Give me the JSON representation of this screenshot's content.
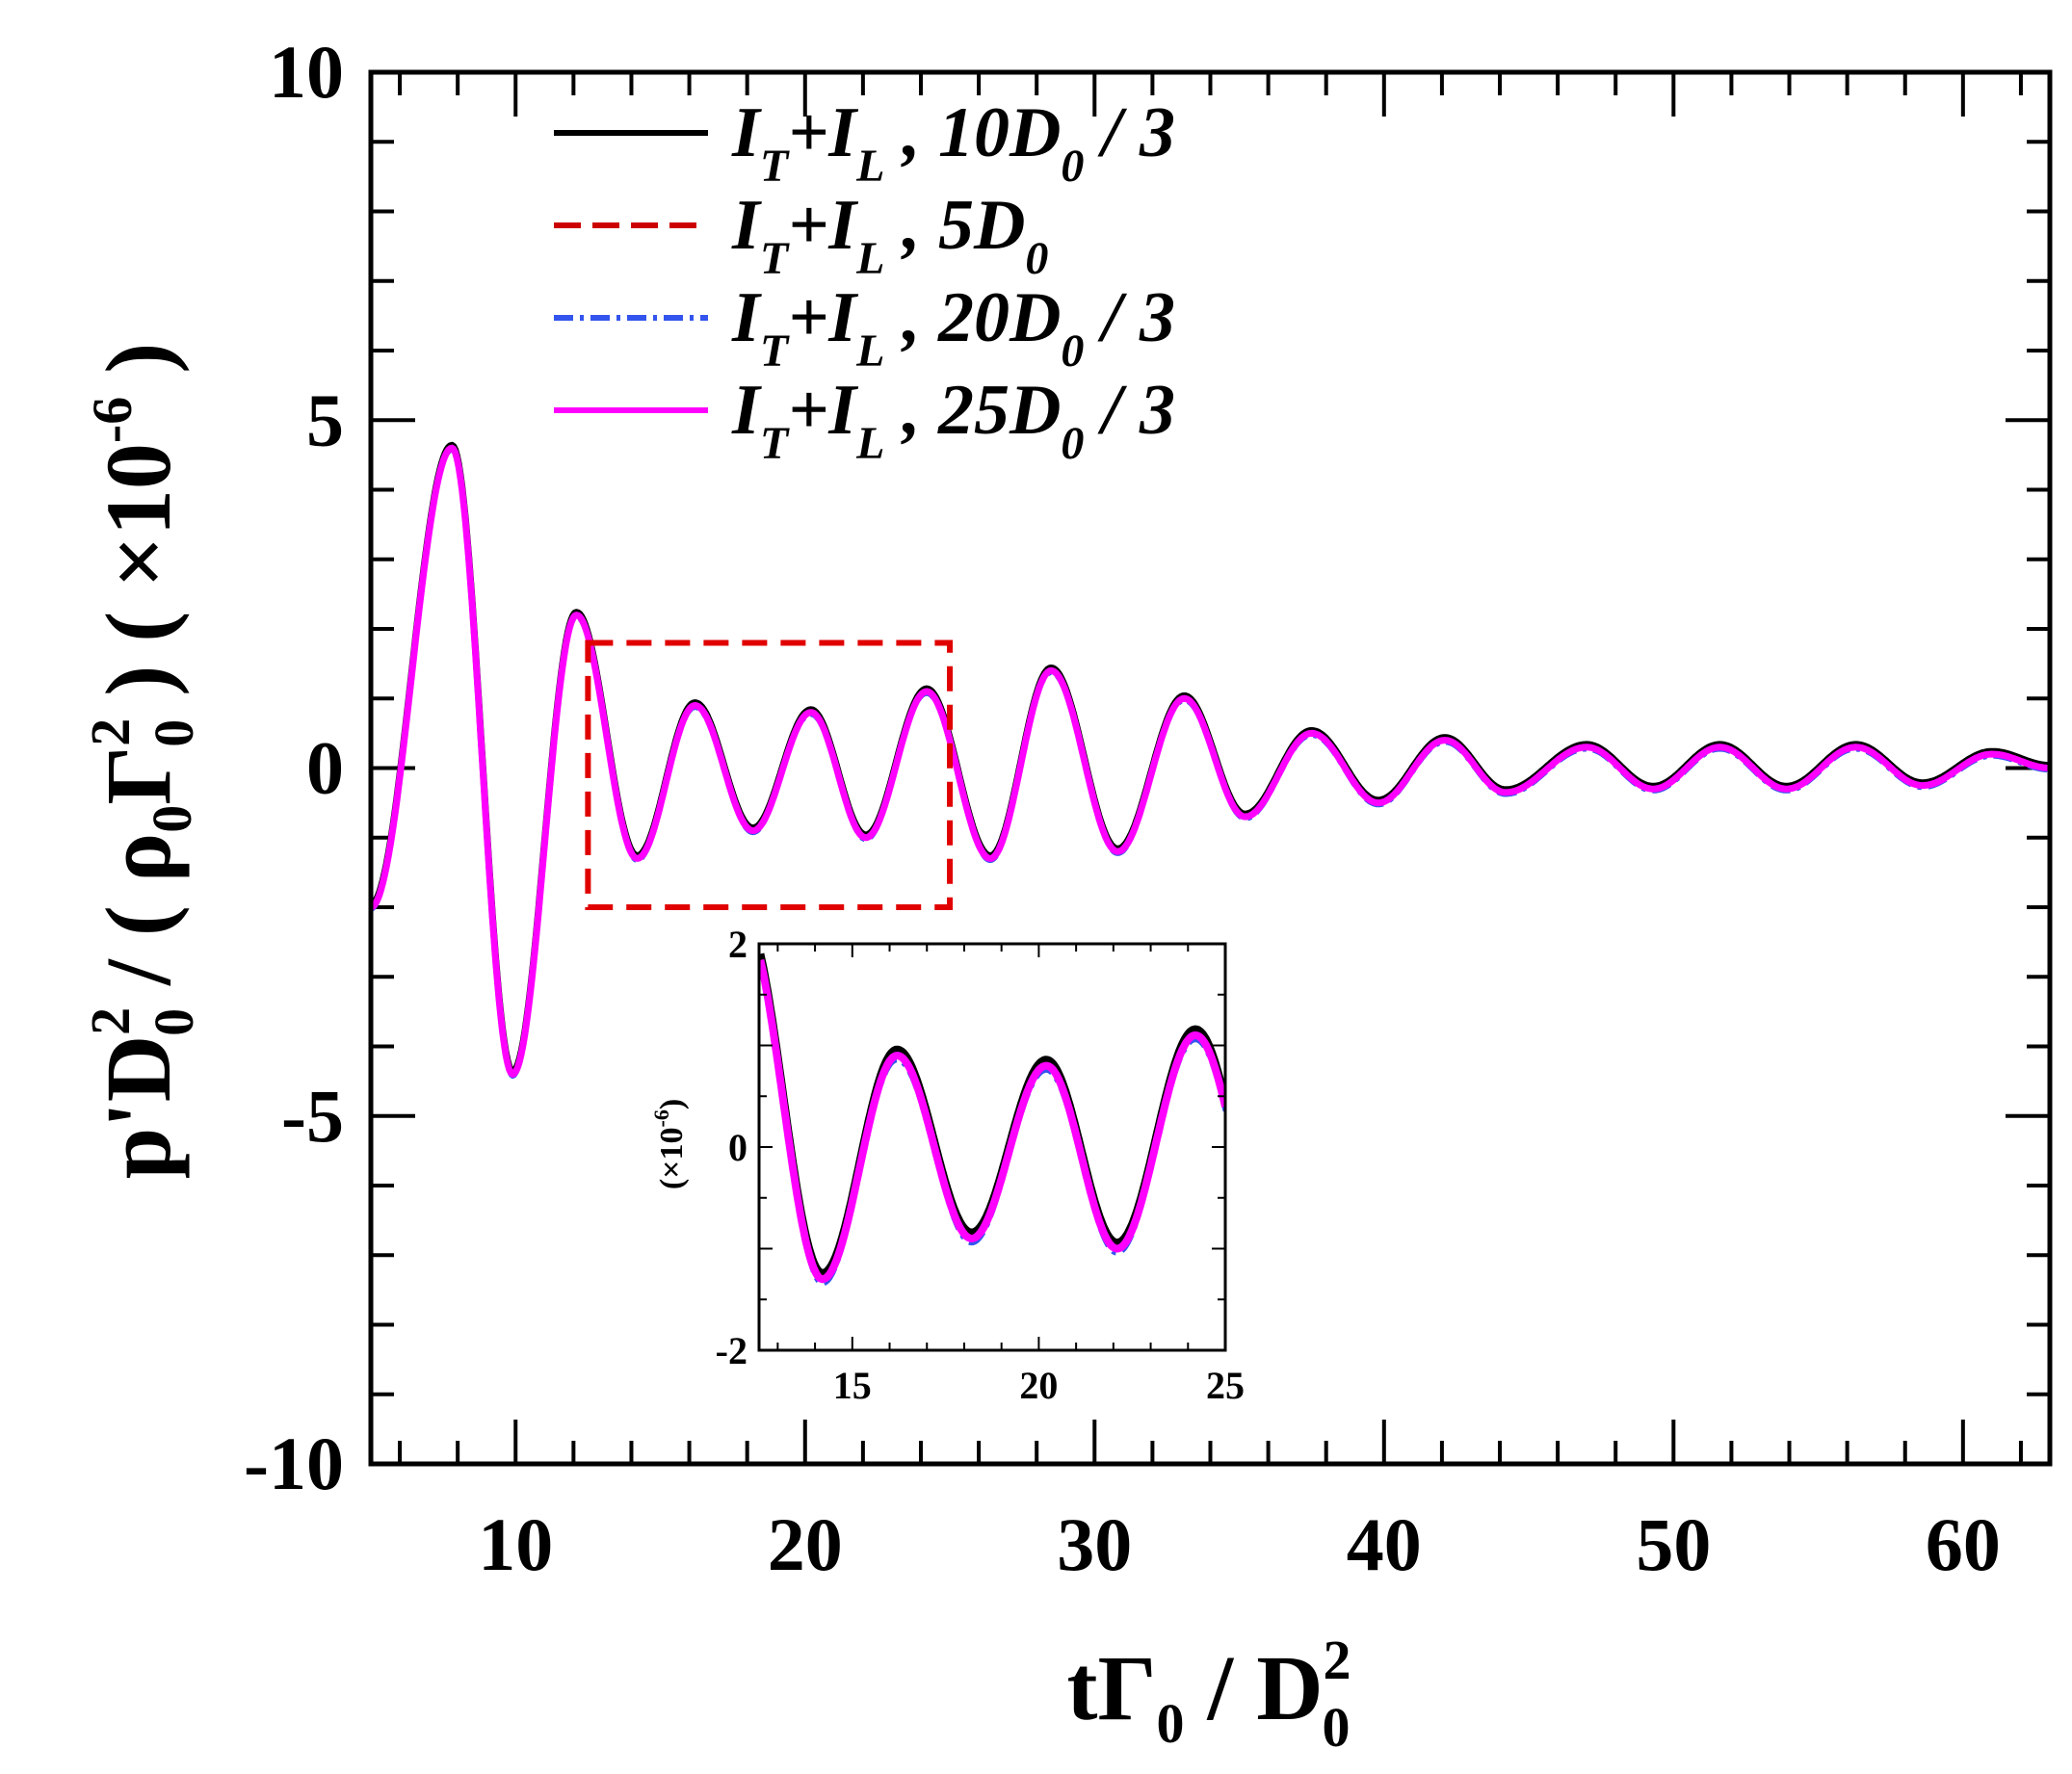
{
  "chart_data": {
    "type": "line",
    "x_axis": {
      "label_base": "tΓ",
      "label_sub": "0",
      "label_div": " / D",
      "label_sup": "2",
      "label_sub2": "0",
      "range": [
        5,
        63
      ],
      "major_ticks": [
        10,
        20,
        30,
        40,
        50,
        60
      ],
      "minor_step": 2
    },
    "y_axis": {
      "label_parts": [
        "p'D",
        "2",
        "0",
        " / ( ρ",
        "0",
        "Γ",
        "2",
        "0",
        " ) ( ×10",
        "-6",
        " )"
      ],
      "range": [
        -10,
        10
      ],
      "tick_labels": [
        "-10",
        "-5",
        "0",
        "5",
        "10"
      ],
      "tick_values": [
        -10,
        -5,
        0,
        5,
        10
      ],
      "minor_step": 1,
      "scale_note": "×10^-6"
    },
    "series": [
      {
        "name": "I_T+I_L , 10D_0 / 3",
        "base": "I",
        "s1": "T",
        "plus": "+I",
        "s2": "L",
        "tail": " , 10D",
        "s3": "0",
        "end": " / 3",
        "color": "#000000",
        "dash": ""
      },
      {
        "name": "I_T+I_L , 5D_0",
        "base": "I",
        "s1": "T",
        "plus": "+I",
        "s2": "L",
        "tail": " , 5D",
        "s3": "0",
        "end": "",
        "color": "#cc0000",
        "dash": "28 12"
      },
      {
        "name": "I_T+I_L , 20D_0 / 3",
        "base": "I",
        "s1": "T",
        "plus": "+I",
        "s2": "L",
        "tail": " , 20D",
        "s3": "0",
        "end": " / 3",
        "color": "#3355ee",
        "dash": "20 7 4 7"
      },
      {
        "name": "I_T+I_L , 25D_0 / 3",
        "base": "I",
        "s1": "T",
        "plus": "+I",
        "s2": "L",
        "tail": " , 25D",
        "s3": "0",
        "end": " / 3",
        "color": "#ff00ff",
        "dash": ""
      }
    ],
    "extrema": [
      [
        5.0,
        -2.0
      ],
      [
        7.8,
        4.6
      ],
      [
        9.9,
        -4.4
      ],
      [
        12.1,
        2.2
      ],
      [
        14.2,
        -1.3
      ],
      [
        16.2,
        0.9
      ],
      [
        18.2,
        -0.9
      ],
      [
        20.2,
        0.8
      ],
      [
        22.1,
        -1.0
      ],
      [
        24.2,
        1.1
      ],
      [
        26.4,
        -1.3
      ],
      [
        28.5,
        1.4
      ],
      [
        30.8,
        -1.2
      ],
      [
        33.1,
        1.0
      ],
      [
        35.2,
        -0.7
      ],
      [
        37.5,
        0.5
      ],
      [
        39.8,
        -0.5
      ],
      [
        42.1,
        0.4
      ],
      [
        44.2,
        -0.35
      ],
      [
        47.0,
        0.3
      ],
      [
        49.3,
        -0.3
      ],
      [
        51.6,
        0.3
      ],
      [
        53.9,
        -0.3
      ],
      [
        56.3,
        0.3
      ],
      [
        58.6,
        -0.25
      ],
      [
        61.0,
        0.2
      ],
      [
        63.0,
        0.0
      ]
    ],
    "zoom_box": {
      "x": [
        12.5,
        25
      ],
      "y": [
        -2,
        1.8
      ],
      "color": "#e00000"
    },
    "inset": {
      "x_range": [
        12.5,
        25
      ],
      "y_range": [
        -2,
        2
      ],
      "x_tick_values": [
        15,
        20,
        25
      ],
      "x_tick_labels": [
        "15",
        "20",
        "25"
      ],
      "y_tick_values": [
        -2,
        0,
        2
      ],
      "y_tick_labels": [
        "-2",
        "0",
        "2"
      ],
      "y_label": "(×10",
      "y_label_sup": "-6",
      "y_label_end": ")"
    }
  }
}
